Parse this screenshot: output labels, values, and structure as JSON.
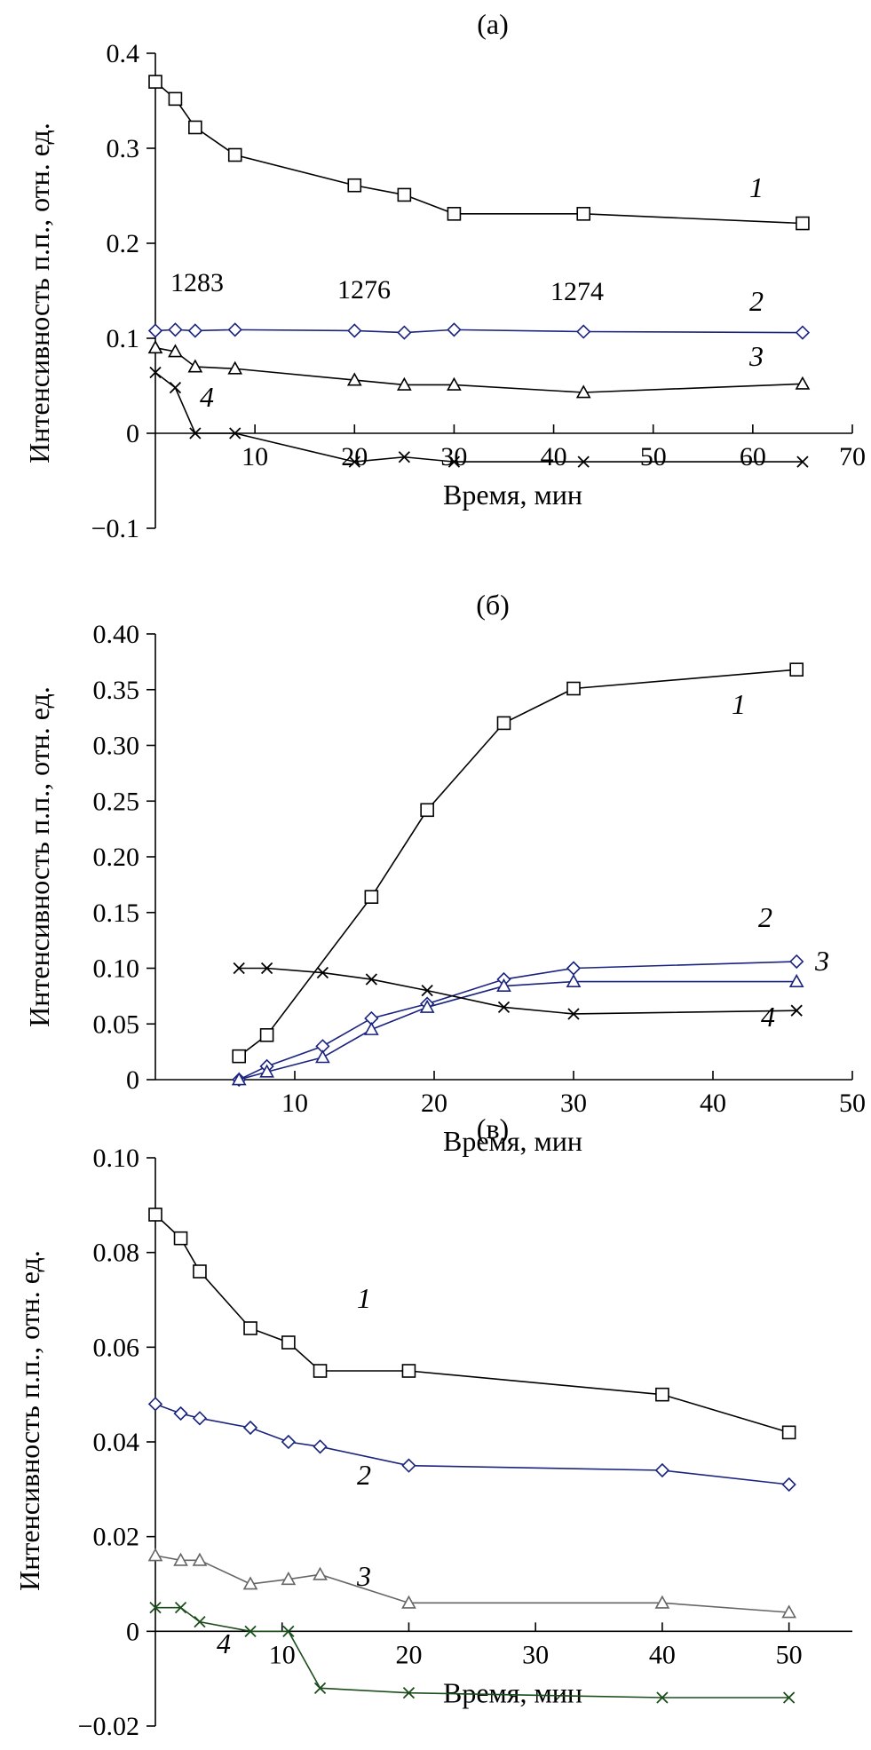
{
  "chart_data": [
    {
      "type": "line",
      "title": "(а)",
      "xlabel": "Время, мин",
      "ylabel": "Интенсивность п.п., отн. ед.",
      "xlim": [
        0,
        70
      ],
      "ylim": [
        -0.1,
        0.4
      ],
      "xticks": [
        10,
        20,
        30,
        40,
        50,
        60,
        70
      ],
      "yticks": [
        -0.1,
        0,
        0.1,
        0.2,
        0.3,
        0.4
      ],
      "xtick_labels": [
        "10",
        "20",
        "30",
        "40",
        "50",
        "60",
        "70"
      ],
      "ytick_labels": [
        "−0.1",
        "0",
        "0.1",
        "0.2",
        "0.3",
        "0.4"
      ],
      "annotations": [
        "1283",
        "1276",
        "1274"
      ],
      "series": [
        {
          "name": "1",
          "marker": "square",
          "color": "#000000",
          "x": [
            0,
            2,
            4,
            8,
            20,
            25,
            30,
            43,
            65
          ],
          "y": [
            0.37,
            0.352,
            0.322,
            0.293,
            0.261,
            0.251,
            0.231,
            0.231,
            0.221
          ]
        },
        {
          "name": "2",
          "marker": "diamond",
          "color": "#1a237e",
          "x": [
            0,
            2,
            4,
            8,
            20,
            25,
            30,
            43,
            65
          ],
          "y": [
            0.108,
            0.109,
            0.108,
            0.109,
            0.108,
            0.106,
            0.109,
            0.107,
            0.106
          ]
        },
        {
          "name": "3",
          "marker": "triangle",
          "color": "#000000",
          "x": [
            0,
            2,
            4,
            8,
            20,
            25,
            30,
            43,
            65
          ],
          "y": [
            0.09,
            0.086,
            0.07,
            0.068,
            0.056,
            0.051,
            0.051,
            0.043,
            0.052
          ]
        },
        {
          "name": "4",
          "marker": "cross",
          "color": "#000000",
          "x": [
            0,
            2,
            4,
            8,
            20,
            25,
            30,
            43,
            65
          ],
          "y": [
            0.064,
            0.048,
            0.0,
            0.0,
            -0.03,
            -0.025,
            -0.03,
            -0.03,
            -0.03
          ]
        }
      ]
    },
    {
      "type": "line",
      "title": "(б)",
      "xlabel": "Время, мин",
      "ylabel": "Интенсивность п.п., отн. ед.",
      "xlim": [
        0,
        50
      ],
      "ylim": [
        0,
        0.4
      ],
      "xticks": [
        10,
        20,
        30,
        40,
        50
      ],
      "yticks": [
        0,
        0.05,
        0.1,
        0.15,
        0.2,
        0.25,
        0.3,
        0.35,
        0.4
      ],
      "xtick_labels": [
        "10",
        "20",
        "30",
        "40",
        "50"
      ],
      "ytick_labels": [
        "0",
        "0.05",
        "0.10",
        "0.15",
        "0.20",
        "0.25",
        "0.30",
        "0.35",
        "0.40"
      ],
      "series": [
        {
          "name": "1",
          "marker": "square",
          "color": "#000000",
          "x": [
            6,
            8,
            15.5,
            19.5,
            25,
            30,
            46
          ],
          "y": [
            0.021,
            0.04,
            0.164,
            0.242,
            0.32,
            0.351,
            0.368
          ]
        },
        {
          "name": "2",
          "marker": "diamond",
          "color": "#1a237e",
          "x": [
            6,
            8,
            12,
            15.5,
            19.5,
            25,
            30,
            46
          ],
          "y": [
            0.0,
            0.012,
            0.03,
            0.055,
            0.068,
            0.09,
            0.1,
            0.106
          ]
        },
        {
          "name": "3",
          "marker": "triangle",
          "color": "#1a237e",
          "x": [
            6,
            8,
            12,
            15.5,
            19.5,
            25,
            30,
            46
          ],
          "y": [
            0.0,
            0.007,
            0.02,
            0.045,
            0.065,
            0.084,
            0.088,
            0.088
          ]
        },
        {
          "name": "4",
          "marker": "cross",
          "color": "#000000",
          "x": [
            6,
            8,
            12,
            15.5,
            19.5,
            25,
            30,
            46
          ],
          "y": [
            0.1,
            0.1,
            0.096,
            0.09,
            0.08,
            0.065,
            0.059,
            0.062
          ]
        }
      ]
    },
    {
      "type": "line",
      "title": "(в)",
      "xlabel": "Время, мин",
      "ylabel": "Интенсивность п.п., отн. ед.",
      "xlim": [
        0,
        55
      ],
      "ylim": [
        -0.02,
        0.1
      ],
      "xticks": [
        10,
        20,
        30,
        40,
        50
      ],
      "yticks": [
        -0.02,
        0,
        0.02,
        0.04,
        0.06,
        0.08,
        0.1
      ],
      "xtick_labels": [
        "10",
        "20",
        "30",
        "40",
        "50"
      ],
      "ytick_labels": [
        "−0.02",
        "0",
        "0.02",
        "0.04",
        "0.06",
        "0.08",
        "0.10"
      ],
      "series": [
        {
          "name": "1",
          "marker": "square",
          "color": "#000000",
          "x": [
            0,
            2,
            3.5,
            7.5,
            10.5,
            13,
            20,
            40,
            50
          ],
          "y": [
            0.088,
            0.083,
            0.076,
            0.064,
            0.061,
            0.055,
            0.055,
            0.05,
            0.042
          ]
        },
        {
          "name": "2",
          "marker": "diamond",
          "color": "#1a237e",
          "x": [
            0,
            2,
            3.5,
            7.5,
            10.5,
            13,
            20,
            40,
            50
          ],
          "y": [
            0.048,
            0.046,
            0.045,
            0.043,
            0.04,
            0.039,
            0.035,
            0.034,
            0.031
          ]
        },
        {
          "name": "3",
          "marker": "triangle",
          "color": "#666666",
          "x": [
            0,
            2,
            3.5,
            7.5,
            10.5,
            13,
            20,
            40,
            50
          ],
          "y": [
            0.016,
            0.015,
            0.015,
            0.01,
            0.011,
            0.012,
            0.006,
            0.006,
            0.004
          ]
        },
        {
          "name": "4",
          "marker": "cross",
          "color": "#1b4d1b",
          "x": [
            0,
            2,
            3.5,
            7.5,
            10.5,
            13,
            20,
            40,
            50
          ],
          "y": [
            0.005,
            0.005,
            0.002,
            0.0,
            0.0,
            -0.012,
            -0.013,
            -0.014,
            -0.014
          ]
        }
      ]
    }
  ]
}
